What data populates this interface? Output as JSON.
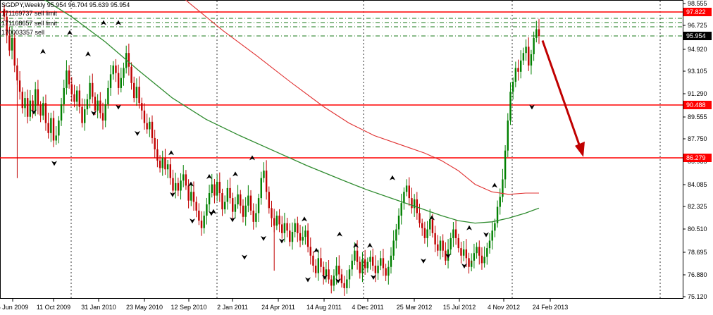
{
  "header": {
    "title": "SGDPY,Weekly  95.954 96.704 95.639 95.954",
    "orders": [
      "171169737 sell limit",
      "171168657 sell limit",
      "170003357 sell"
    ]
  },
  "colors": {
    "background": "#ffffff",
    "bull_candle": "#008000",
    "bear_candle": "#c00000",
    "ma_fast": "#2e8b2e",
    "ma_slow": "#e03030",
    "level_line": "#ff0000",
    "order_line": "#1a7a1a",
    "arrow": "#c00000",
    "price_tag": "#ff0000",
    "current_tag": "#000000"
  },
  "chart_data": {
    "type": "candlestick",
    "title": "SGDPY,Weekly",
    "ohlc_last": {
      "open": 95.954,
      "high": 96.704,
      "low": 95.639,
      "close": 95.954
    },
    "ylim": [
      75.12,
      99.2
    ],
    "yticks": [
      "98.555",
      "96.725",
      "94.920",
      "93.105",
      "91.290",
      "89.555",
      "87.750",
      "85.935",
      "84.085",
      "82.325",
      "80.510",
      "78.695",
      "76.880",
      "75.120"
    ],
    "xticks": [
      "5 Jun 2009",
      "11 Oct 2009",
      "31 Jan 2010",
      "23 May 2010",
      "12 Sep 2010",
      "2 Jan 2011",
      "24 Apr 2011",
      "14 Aug 2011",
      "4 Dec 2011",
      "25 Mar 2012",
      "15 Jul 2012",
      "4 Nov 2012",
      "24 Feb 2013"
    ],
    "grid": "vertical-dotted",
    "levels": [
      {
        "name": "resistance-upper",
        "value": 97.822
      },
      {
        "name": "resistance-mid",
        "value": 90.488
      },
      {
        "name": "support",
        "value": 86.279
      }
    ],
    "current_price": 95.954,
    "order_levels": [
      97.4,
      97.05,
      96.75,
      95.9
    ],
    "ma_fast": [
      [
        0,
        99.8
      ],
      [
        20,
        99.2
      ],
      [
        40,
        97.5
      ],
      [
        60,
        95.5
      ],
      [
        80,
        93.2
      ],
      [
        100,
        91.0
      ],
      [
        120,
        89.3
      ],
      [
        140,
        88.0
      ],
      [
        160,
        86.8
      ],
      [
        180,
        85.6
      ],
      [
        200,
        84.5
      ],
      [
        215,
        83.7
      ],
      [
        230,
        83.0
      ],
      [
        245,
        82.3
      ],
      [
        260,
        81.6
      ],
      [
        270,
        81.2
      ],
      [
        280,
        81.0
      ],
      [
        290,
        81.1
      ],
      [
        300,
        81.4
      ],
      [
        310,
        81.8
      ],
      [
        318,
        82.2
      ]
    ],
    "ma_slow": [
      [
        90,
        101
      ],
      [
        110,
        98.6
      ],
      [
        130,
        96.4
      ],
      [
        150,
        94.4
      ],
      [
        170,
        92.3
      ],
      [
        190,
        90.3
      ],
      [
        205,
        89.0
      ],
      [
        220,
        88.0
      ],
      [
        235,
        87.3
      ],
      [
        250,
        86.6
      ],
      [
        260,
        86.0
      ],
      [
        270,
        85.2
      ],
      [
        280,
        84.1
      ],
      [
        290,
        83.5
      ],
      [
        300,
        83.3
      ],
      [
        310,
        83.4
      ],
      [
        318,
        83.4
      ]
    ],
    "candles_bull_every": 2,
    "candles": [
      97.5,
      96.0,
      94.8,
      95.8,
      93.6,
      92.4,
      91.5,
      90.2,
      91.0,
      89.5,
      90.8,
      90.0,
      91.7,
      90.4,
      89.6,
      90.6,
      89.0,
      88.2,
      89.4,
      87.6,
      88.0,
      89.2,
      90.5,
      91.8,
      93.2,
      92.1,
      91.3,
      90.7,
      91.6,
      90.3,
      89.0,
      90.1,
      90.9,
      92.2,
      91.1,
      90.0,
      90.8,
      89.8,
      89.2,
      90.5,
      91.8,
      92.9,
      93.6,
      93.0,
      91.8,
      92.6,
      93.4,
      94.6,
      93.5,
      92.2,
      91.0,
      91.9,
      90.6,
      90.0,
      89.0,
      88.5,
      89.1,
      87.8,
      86.9,
      86.0,
      85.4,
      86.2,
      85.3,
      85.7,
      84.6,
      83.6,
      84.2,
      83.6,
      84.4,
      84.9,
      84.0,
      82.8,
      83.5,
      82.7,
      82.0,
      81.2,
      80.6,
      81.6,
      82.5,
      83.4,
      84.1,
      83.2,
      84.3,
      83.4,
      82.1,
      82.7,
      83.8,
      83.0,
      81.9,
      82.5,
      83.3,
      82.4,
      81.5,
      82.4,
      83.2,
      82.0,
      81.1,
      81.8,
      83.0,
      84.6,
      85.2,
      83.5,
      82.2,
      81.4,
      80.8,
      81.6,
      80.9,
      80.2,
      81.0,
      80.4,
      79.5,
      80.3,
      81.0,
      80.2,
      79.6,
      79.9,
      80.4,
      79.1,
      78.4,
      77.6,
      77.0,
      78.2,
      77.5,
      76.8,
      77.3,
      76.5,
      76.0,
      76.8,
      77.6,
      76.9,
      76.2,
      75.8,
      76.5,
      77.3,
      78.0,
      78.8,
      77.9,
      77.0,
      78.1,
      77.4,
      77.9,
      78.3,
      77.6,
      77.0,
      77.6,
      78.2,
      77.4,
      76.8,
      77.5,
      78.4,
      79.6,
      80.5,
      81.6,
      82.6,
      83.5,
      84.0,
      83.0,
      82.2,
      82.9,
      81.8,
      81.0,
      80.6,
      79.8,
      80.5,
      81.3,
      80.2,
      79.3,
      78.8,
      79.6,
      78.8,
      78.0,
      78.9,
      79.8,
      80.5,
      79.8,
      79.0,
      78.4,
      78.9,
      78.2,
      77.5,
      78.0,
      78.6,
      79.1,
      78.4,
      77.8,
      78.3,
      79.0,
      79.6,
      80.4,
      81.0,
      82.3,
      83.1,
      84.5,
      86.8,
      89.2,
      91.5,
      92.3,
      93.4,
      93.1,
      94.0,
      94.6,
      95.1,
      93.6,
      94.5,
      95.8,
      96.5,
      95.95
    ],
    "series": [
      {
        "name": "SGDPY",
        "kind": "ohlc"
      }
    ],
    "trend_arrow": {
      "from": {
        "x": "24 Feb 2013",
        "y": 95.6
      },
      "to_y": 86.279,
      "direction": "down"
    }
  },
  "y_labels_highlight": [
    "97.822",
    "95.954",
    "90.488",
    "86.279"
  ]
}
